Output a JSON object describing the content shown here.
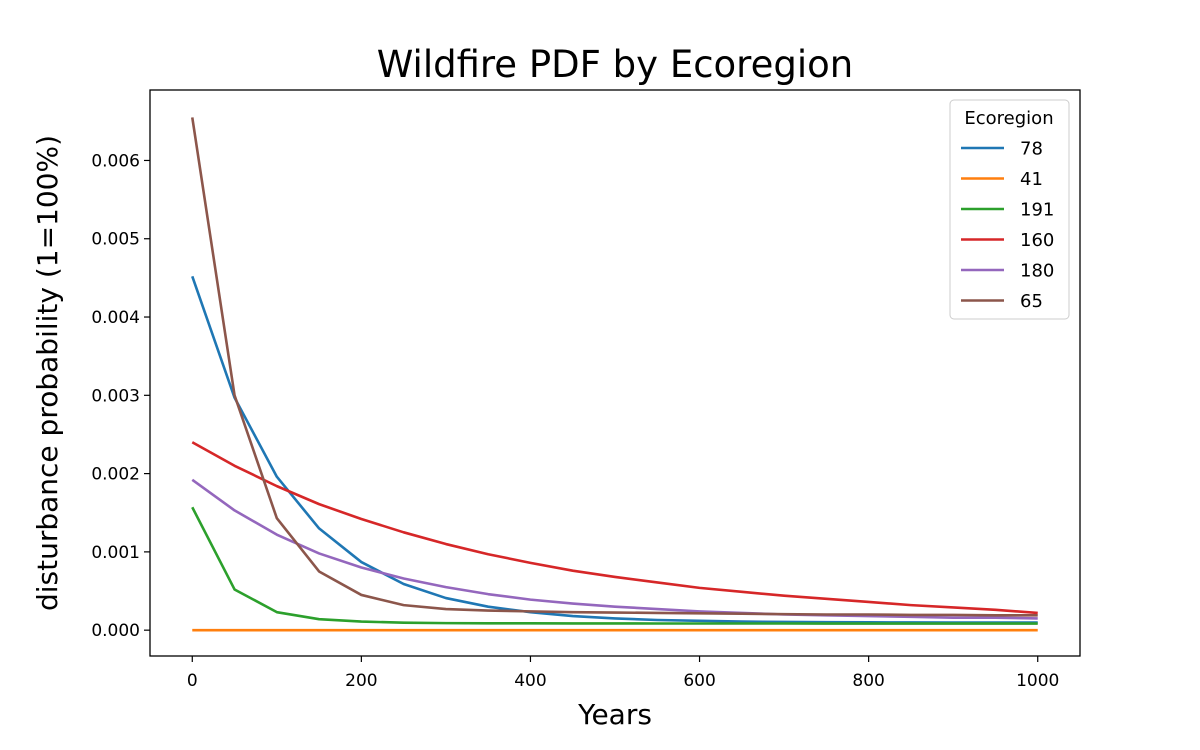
{
  "chart_data": {
    "type": "line",
    "title": "Wildfire PDF by Ecoregion",
    "xlabel": "Years",
    "ylabel": "disturbance probability (1=100%)",
    "xlim": [
      -50,
      1050
    ],
    "ylim": [
      -0.00033,
      0.0069
    ],
    "xticks": [
      0,
      200,
      400,
      600,
      800,
      1000
    ],
    "yticks": [
      0.0,
      0.001,
      0.002,
      0.003,
      0.004,
      0.005,
      0.006
    ],
    "xtick_labels": [
      "0",
      "200",
      "400",
      "600",
      "800",
      "1000"
    ],
    "ytick_labels": [
      "0.000",
      "0.001",
      "0.002",
      "0.003",
      "0.004",
      "0.005",
      "0.006"
    ],
    "grid": false,
    "legend": {
      "title": "Ecoregion",
      "placement": "top-right"
    },
    "x": [
      0,
      50,
      100,
      150,
      200,
      250,
      300,
      350,
      400,
      450,
      500,
      550,
      600,
      650,
      700,
      750,
      800,
      850,
      900,
      950,
      1000
    ],
    "series": [
      {
        "name": "78",
        "color": "#1f77b4",
        "values": [
          0.00452,
          0.00297,
          0.00196,
          0.0013,
          0.00087,
          0.00059,
          0.00041,
          0.0003,
          0.00023,
          0.00018,
          0.00015,
          0.00013,
          0.00012,
          0.00011,
          0.000105,
          0.000102,
          0.0001,
          9.9e-05,
          9.8e-05,
          9.8e-05,
          9.7e-05
        ]
      },
      {
        "name": "41",
        "color": "#ff7f0e",
        "values": [
          0.0,
          0.0,
          0.0,
          0.0,
          0.0,
          0.0,
          0.0,
          0.0,
          0.0,
          0.0,
          0.0,
          0.0,
          0.0,
          0.0,
          0.0,
          0.0,
          0.0,
          0.0,
          0.0,
          0.0,
          0.0
        ]
      },
      {
        "name": "191",
        "color": "#2ca02c",
        "values": [
          0.00157,
          0.00052,
          0.00023,
          0.00014,
          0.00011,
          9.5e-05,
          9e-05,
          8.8e-05,
          8.7e-05,
          8.6e-05,
          8.6e-05,
          8.5e-05,
          8.5e-05,
          8.5e-05,
          8.5e-05,
          8.4e-05,
          8.4e-05,
          8.4e-05,
          8.4e-05,
          8.4e-05,
          8.4e-05
        ]
      },
      {
        "name": "160",
        "color": "#d62728",
        "values": [
          0.0024,
          0.0021,
          0.00184,
          0.00161,
          0.00142,
          0.00125,
          0.0011,
          0.00097,
          0.00086,
          0.00076,
          0.00068,
          0.00061,
          0.00054,
          0.00049,
          0.00044,
          0.0004,
          0.00036,
          0.00032,
          0.00029,
          0.00026,
          0.00022
        ]
      },
      {
        "name": "180",
        "color": "#9467bd",
        "values": [
          0.00192,
          0.00153,
          0.00122,
          0.00098,
          0.0008,
          0.00066,
          0.00055,
          0.00046,
          0.00039,
          0.00034,
          0.0003,
          0.00027,
          0.00024,
          0.00022,
          0.0002,
          0.00019,
          0.00018,
          0.00017,
          0.00016,
          0.00016,
          0.00015
        ]
      },
      {
        "name": "65",
        "color": "#8c564b",
        "values": [
          0.00655,
          0.003,
          0.00143,
          0.00075,
          0.00045,
          0.00032,
          0.00027,
          0.00025,
          0.00024,
          0.00023,
          0.000225,
          0.00022,
          0.000215,
          0.00021,
          0.000205,
          0.0002,
          0.0002,
          0.000195,
          0.000195,
          0.00019,
          0.00019
        ]
      }
    ]
  }
}
